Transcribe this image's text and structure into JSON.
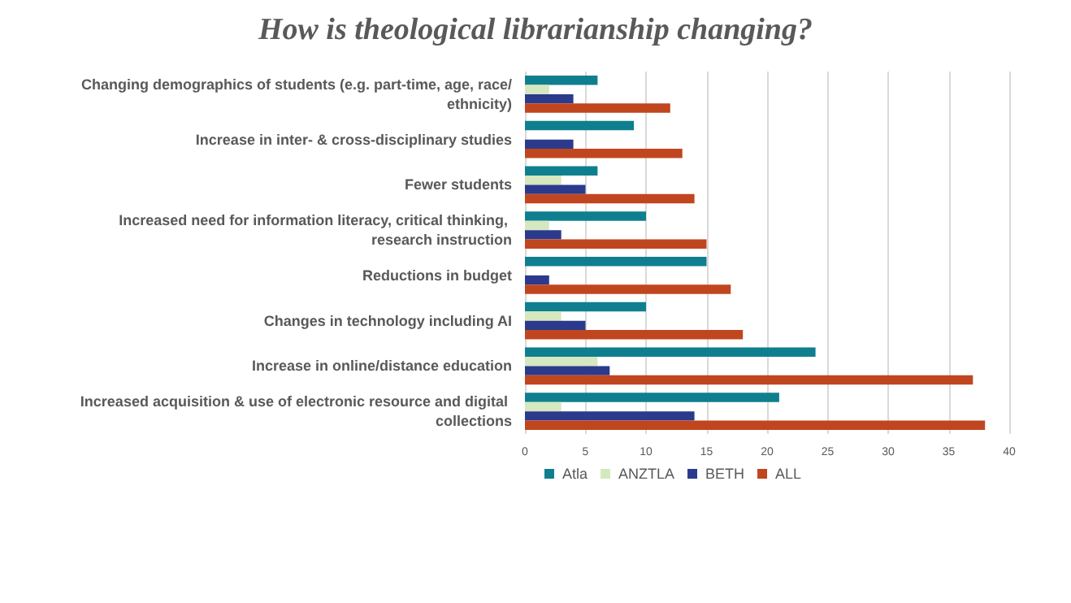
{
  "chart_data": {
    "type": "bar",
    "orientation": "horizontal",
    "title": "How is theological librarianship changing?",
    "categories": [
      "Changing demographics of students (e.g. part-time, age, race/ethnicity)",
      "Increase in inter- & cross-disciplinary studies",
      "Fewer students",
      "Increased need for information literacy, critical thinking, research instruction",
      "Reductions in budget",
      "Changes in technology including AI",
      "Increase in online/distance education",
      "Increased acquisition & use of electronic resource and digital collections"
    ],
    "series": [
      {
        "name": "Atla",
        "color": "#0f7f8f",
        "values": [
          6,
          9,
          6,
          10,
          15,
          10,
          24,
          21
        ]
      },
      {
        "name": "ANZTLA",
        "color": "#d5e8c0",
        "values": [
          2,
          0,
          3,
          2,
          0,
          3,
          6,
          3
        ]
      },
      {
        "name": "BETH",
        "color": "#2b3a8c",
        "values": [
          4,
          4,
          5,
          3,
          2,
          5,
          7,
          14
        ]
      },
      {
        "name": "ALL",
        "color": "#c0461f",
        "values": [
          12,
          13,
          14,
          15,
          17,
          18,
          37,
          38
        ]
      }
    ],
    "xlim": [
      0,
      40
    ],
    "xticks": [
      0,
      5,
      10,
      15,
      20,
      25,
      30,
      35,
      40
    ],
    "grid": "x",
    "legend": "bottom"
  }
}
